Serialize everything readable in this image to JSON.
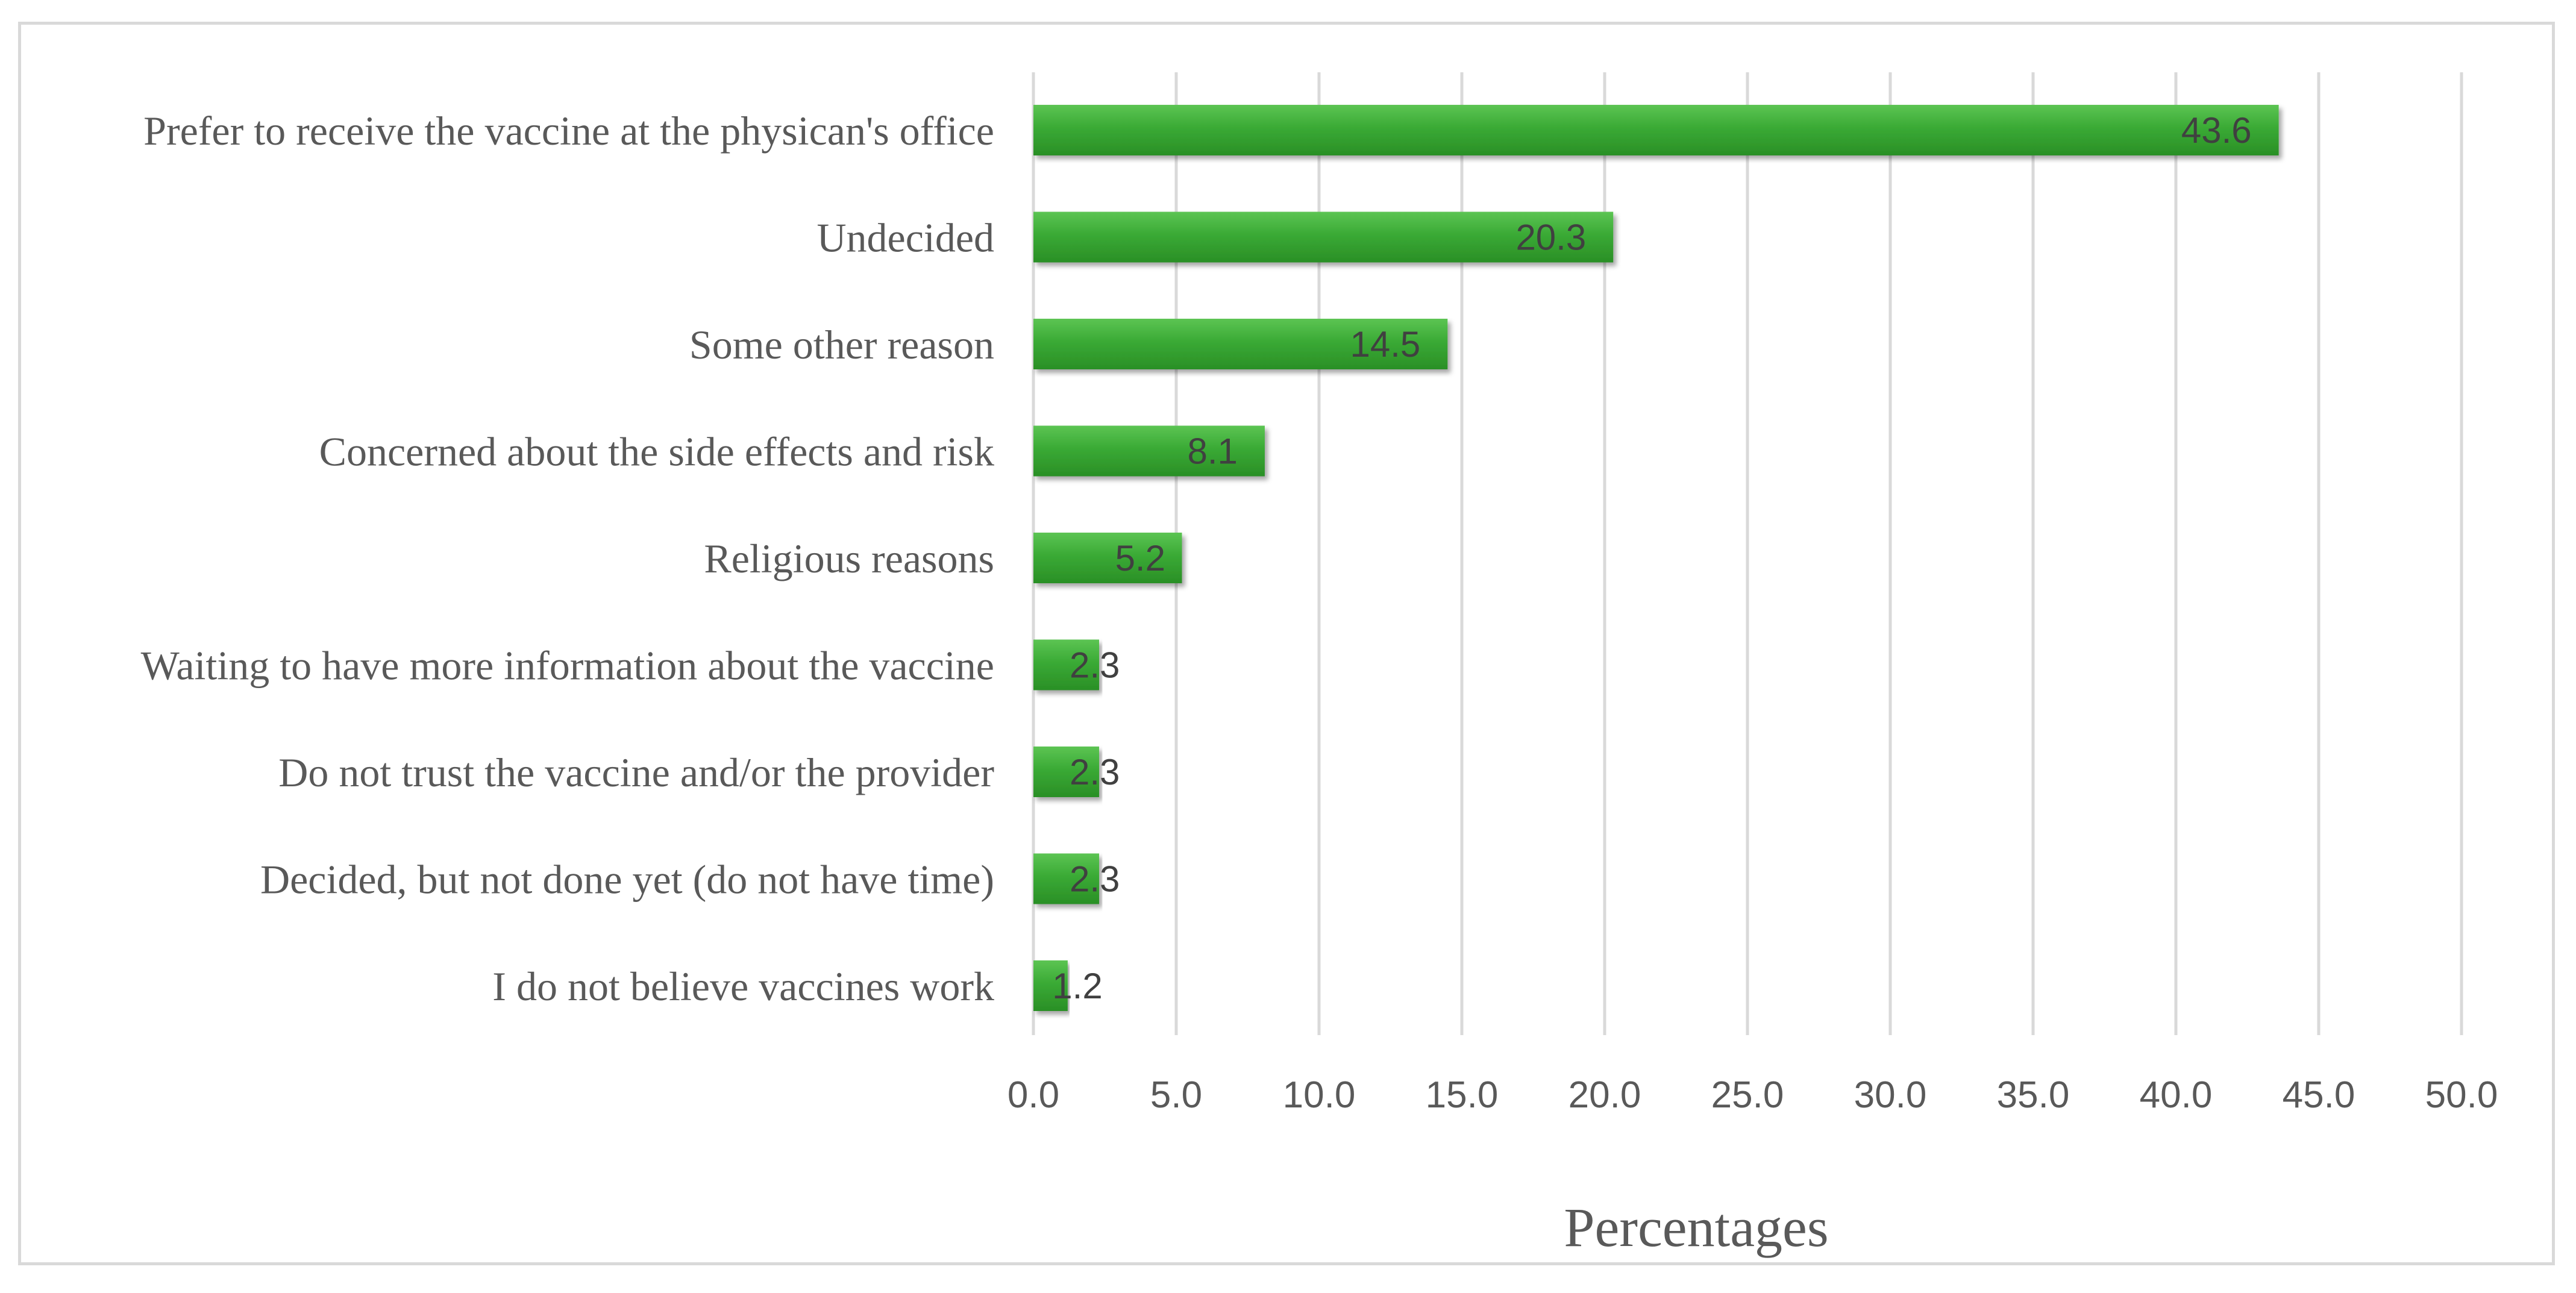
{
  "chart_data": {
    "type": "bar",
    "orientation": "horizontal",
    "categories": [
      "Prefer to receive the vaccine at the physican's office",
      "Undecided",
      "Some other reason",
      "Concerned about the side effects and risk",
      "Religious reasons",
      "Waiting to have more information about the vaccine",
      "Do not trust the vaccine and/or the provider",
      "Decided, but not done yet (do not have time)",
      "I do not believe vaccines work"
    ],
    "values": [
      43.6,
      20.3,
      14.5,
      8.1,
      5.2,
      2.3,
      2.3,
      2.3,
      1.2
    ],
    "data_labels": [
      "43.6",
      "20.3",
      "14.5",
      "8.1",
      "5.2",
      "2.3",
      "2.3",
      "2.3",
      "1.2"
    ],
    "xlim": [
      0,
      50
    ],
    "xticks": [
      0,
      5,
      10,
      15,
      20,
      25,
      30,
      35,
      40,
      45,
      50
    ],
    "xtick_labels": [
      "0.0",
      "5.0",
      "10.0",
      "15.0",
      "20.0",
      "25.0",
      "30.0",
      "35.0",
      "40.0",
      "45.0",
      "50.0"
    ],
    "xlabel": "Percentages",
    "ylabel": "",
    "title": "",
    "grid": "vertical",
    "legend": "none",
    "bar_color": "#3aaa35",
    "bar_color_light": "#5cc453",
    "bar_color_dark": "#2a8f26",
    "gridline_color": "#d9d9d9"
  }
}
